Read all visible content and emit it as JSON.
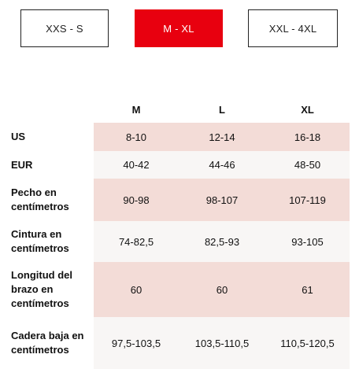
{
  "tabs": [
    {
      "label": "XXS - S",
      "active": false
    },
    {
      "label": "M - XL",
      "active": true
    },
    {
      "label": "XXL - 4XL",
      "active": false
    }
  ],
  "colors": {
    "accent": "#e8000f",
    "row_shade": "#f3dcd7",
    "row_light": "#f8f6f5"
  },
  "table": {
    "header": [
      "",
      "M",
      "L",
      "XL"
    ],
    "rows": [
      {
        "label": "US",
        "values": [
          "8-10",
          "12-14",
          "16-18"
        ]
      },
      {
        "label": "EUR",
        "values": [
          "40-42",
          "44-46",
          "48-50"
        ]
      },
      {
        "label": "Pecho en centímetros",
        "values": [
          "90-98",
          "98-107",
          "107-119"
        ]
      },
      {
        "label": "Cintura en centímetros",
        "values": [
          "74-82,5",
          "82,5-93",
          "93-105"
        ]
      },
      {
        "label": "Longitud del brazo en centímetros",
        "values": [
          "60",
          "60",
          "61"
        ]
      },
      {
        "label": "Cadera baja en centímetros",
        "values": [
          "97,5-103,5",
          "103,5-110,5",
          "110,5-120,5"
        ]
      }
    ]
  }
}
